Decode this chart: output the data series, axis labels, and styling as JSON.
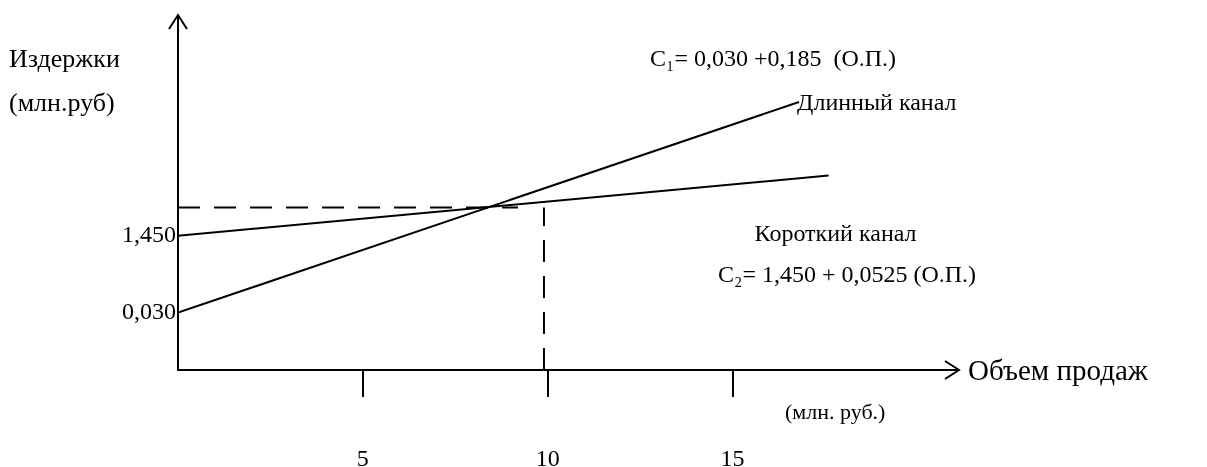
{
  "chart_data": {
    "type": "line",
    "xlabel": "Объем продаж (млн. руб.)",
    "ylabel": "Издержки (млн.руб)",
    "xlim": [
      0,
      21.1
    ],
    "xticks": [
      5,
      10,
      15
    ],
    "ylim": [
      -1.03,
      5.5
    ],
    "yticks": [
      {
        "value": 0.03,
        "label": "0,030"
      },
      {
        "value": 1.45,
        "label": "1,450"
      }
    ],
    "series": [
      {
        "name": "Длинный канал",
        "color": "#000000",
        "x": [
          0,
          16.8
        ],
        "values": [
          0.03,
          3.92
        ]
      },
      {
        "name": "Короткий канал",
        "color": "#000000",
        "x": [
          0,
          17.6
        ],
        "values": [
          1.45,
          2.56
        ]
      }
    ],
    "ref_lines": [
      {
        "axis": "y",
        "value": 1.97,
        "line_style": "dashed",
        "color": "#000000"
      },
      {
        "axis": "x",
        "value": 9.9,
        "line_style": "dashed",
        "color": "#000000"
      }
    ],
    "annotations": [
      "C₁= 0,030 +0,185  (О.П.)",
      "C₂= 1,450 + 0,0525 (О.П.)"
    ],
    "grid": false,
    "legend": false,
    "marker": "none",
    "line_style": "solid"
  }
}
